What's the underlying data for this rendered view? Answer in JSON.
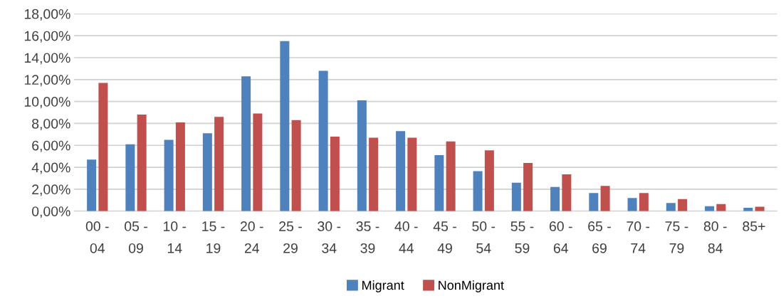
{
  "chart_data": {
    "type": "bar",
    "categories": [
      "00 -\n04",
      "05 -\n09",
      "10 -\n14",
      "15 -\n19",
      "20 -\n24",
      "25 -\n29",
      "30 -\n34",
      "35 -\n39",
      "40 -\n44",
      "45 -\n49",
      "50 -\n54",
      "55 -\n59",
      "60 -\n64",
      "65 -\n69",
      "70 -\n74",
      "75 -\n79",
      "80 -\n84",
      "85+"
    ],
    "series": [
      {
        "name": "Migrant",
        "color": "#4f81bd",
        "values": [
          4.7,
          6.1,
          6.5,
          7.1,
          12.3,
          15.5,
          12.8,
          10.1,
          7.3,
          5.1,
          3.65,
          2.6,
          2.2,
          1.65,
          1.2,
          0.75,
          0.45,
          0.3
        ]
      },
      {
        "name": "NonMigrant",
        "color": "#c0504d",
        "values": [
          11.7,
          8.8,
          8.1,
          8.6,
          8.9,
          8.3,
          6.8,
          6.7,
          6.7,
          6.35,
          5.55,
          4.4,
          3.35,
          2.3,
          1.65,
          1.1,
          0.65,
          0.4
        ]
      }
    ],
    "ylim": [
      0,
      18
    ],
    "yticks": [
      {
        "value": 0,
        "label": "0,00%"
      },
      {
        "value": 2,
        "label": "2,00%"
      },
      {
        "value": 4,
        "label": "4,00%"
      },
      {
        "value": 6,
        "label": "6,00%"
      },
      {
        "value": 8,
        "label": "8,00%"
      },
      {
        "value": 10,
        "label": "10,00%"
      },
      {
        "value": 12,
        "label": "12,00%"
      },
      {
        "value": 14,
        "label": "14,00%"
      },
      {
        "value": 16,
        "label": "16,00%"
      },
      {
        "value": 18,
        "label": "18,00%"
      }
    ],
    "grid": "y",
    "legend": "bottom"
  }
}
